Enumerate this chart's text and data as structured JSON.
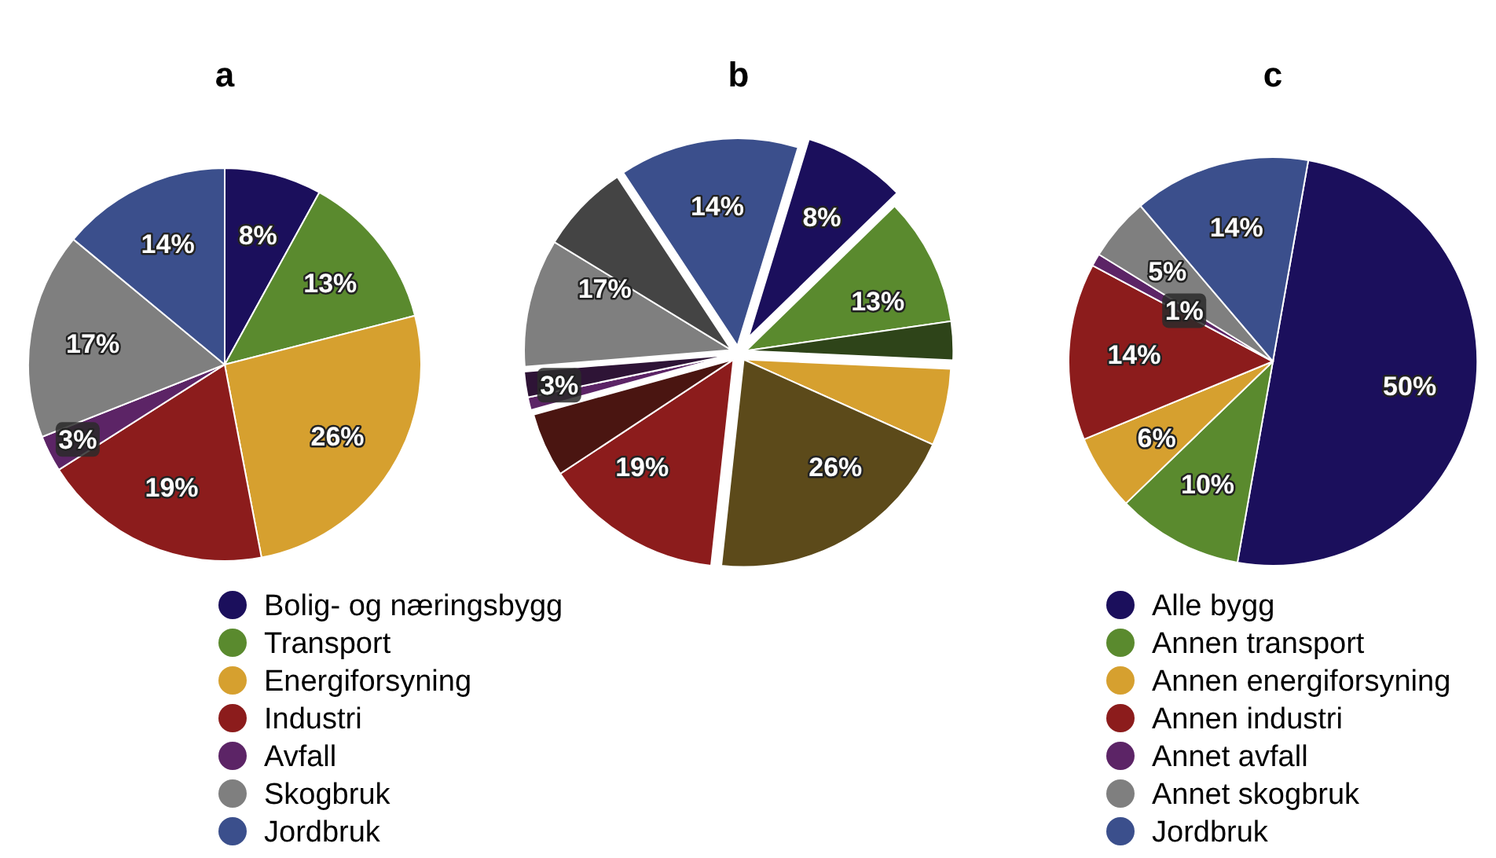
{
  "chart_data": [
    {
      "type": "pie",
      "title": "a",
      "legend": "bottom",
      "categories": [
        "Bolig- og næringsbygg",
        "Transport",
        "Energiforsyning",
        "Industri",
        "Avfall",
        "Skogbruk",
        "Jordbruk"
      ],
      "values": [
        8,
        13,
        26,
        19,
        3,
        17,
        14
      ],
      "colors": [
        "#1b0f5c",
        "#5a8a2e",
        "#d6a02f",
        "#8c1c1c",
        "#5c2466",
        "#7f7f7f",
        "#3b4f8c"
      ],
      "value_labels": [
        "8%",
        "13%",
        "26%",
        "19%",
        "3%",
        "17%",
        "14%"
      ]
    },
    {
      "type": "pie",
      "title": "b",
      "categories": [
        null,
        null,
        null,
        null,
        null,
        null,
        null,
        null,
        null,
        null,
        null,
        null
      ],
      "values": [
        8,
        10,
        3,
        6,
        20,
        14,
        5,
        1,
        2,
        10,
        7,
        14
      ],
      "colors": [
        "#1b0f5c",
        "#5a8a2e",
        "#2e4419",
        "#d6a02f",
        "#5c4a1a",
        "#8c1c1c",
        "#4a1511",
        "#5c2466",
        "#2e1436",
        "#7f7f7f",
        "#444444",
        "#3b4f8c"
      ],
      "annotations": [
        "8%",
        "13%",
        "26%",
        "19%",
        "3%",
        "17%",
        "14%"
      ]
    },
    {
      "type": "pie",
      "title": "c",
      "legend": "bottom",
      "categories": [
        "Alle bygg",
        "Annen transport",
        "Annen energiforsyning",
        "Annen industri",
        "Annet avfall",
        "Annet skogbruk",
        "Jordbruk"
      ],
      "values": [
        50,
        10,
        6,
        14,
        1,
        5,
        14
      ],
      "colors": [
        "#1b0f5c",
        "#5a8a2e",
        "#d6a02f",
        "#8c1c1c",
        "#5c2466",
        "#7f7f7f",
        "#3b4f8c"
      ],
      "value_labels": [
        "50%",
        "10%",
        "6%",
        "14%",
        "1%",
        "5%",
        "14%"
      ]
    }
  ]
}
